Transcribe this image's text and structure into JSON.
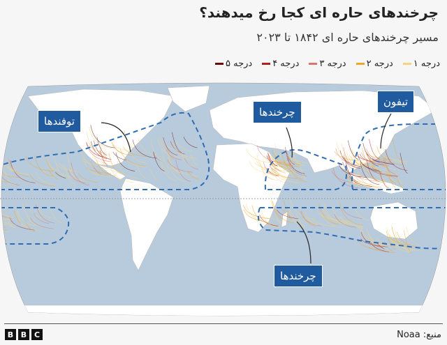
{
  "title": "چرخندهای حاره ای کجا رخ میدهند؟",
  "subtitle": "مسیر چرخندهای حاره ای ۱۸۴۲ تا ۲۰۲۳",
  "legend": [
    {
      "label": "درجه ۱",
      "color": "#f3d47f"
    },
    {
      "label": "درجه ۲",
      "color": "#f0a52c"
    },
    {
      "label": "درجه ۳",
      "color": "#d8766c"
    },
    {
      "label": "درجه ۴",
      "color": "#b41e1e"
    },
    {
      "label": "درجه ۵",
      "color": "#6a0a0a"
    }
  ],
  "labels": {
    "atlantic": "توفندها",
    "indian_north": "چرخندها",
    "pacific_west": "تیفون",
    "indian_south": "چرخندها"
  },
  "colors": {
    "ocean": "#b8cbdd",
    "land": "#ffffff",
    "label_bg": "#1f5b9e",
    "dash": "#2f6cb0"
  },
  "source": "منبع: Noaa",
  "logo": "BBC"
}
